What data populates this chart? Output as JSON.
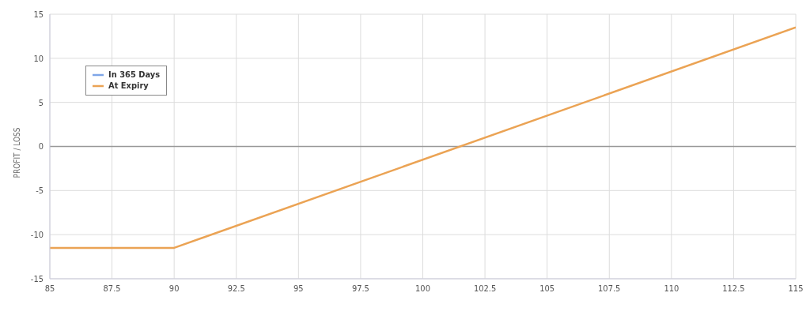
{
  "chart_data": {
    "type": "line",
    "ylabel": "PROFIT / LOSS",
    "x": [
      85,
      90,
      115
    ],
    "series": [
      {
        "name": "In 365 Days",
        "color": "#7fa6e8",
        "values": [
          null,
          null,
          null
        ]
      },
      {
        "name": "At Expiry",
        "color": "#eba354",
        "values": [
          -11.5,
          -11.5,
          13.5
        ]
      }
    ],
    "xlim": [
      85,
      115
    ],
    "xticks": [
      85,
      87.5,
      90,
      92.5,
      95,
      97.5,
      100,
      102.5,
      105,
      107.5,
      110,
      112.5,
      115
    ],
    "ylim": [
      -15,
      15
    ],
    "yticks": [
      -15,
      -10,
      -5,
      0,
      5,
      10,
      15
    ],
    "ref_lines": [
      {
        "axis": "y",
        "value": 0,
        "color": "#999999"
      }
    ],
    "grid": true,
    "legend": "top left",
    "marker": "none",
    "line_style": "solid"
  }
}
